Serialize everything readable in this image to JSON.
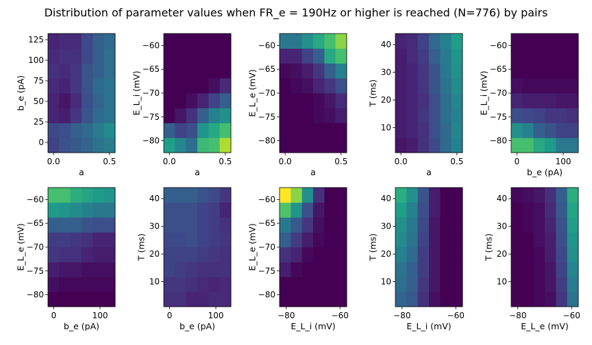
{
  "figure_title": "Distribution of parameter values when FR_e = 190Hz or higher is reached (N=776) by pairs",
  "chart_data": [
    {
      "type": "heatmap",
      "xlabel": "a",
      "ylabel": "b_e (pA)",
      "xlim": [
        -0.05,
        0.55
      ],
      "ylim": [
        -12.5,
        132.5
      ],
      "xticks": [
        0.0,
        0.5
      ],
      "xtick_labels": [
        "0.0",
        "0.5"
      ],
      "yticks": [
        0,
        25,
        50,
        75,
        100,
        125
      ],
      "ytick_labels": [
        "0",
        "25",
        "50",
        "75",
        "100",
        "125"
      ],
      "values": [
        [
          20,
          25,
          28,
          32,
          38,
          42
        ],
        [
          22,
          24,
          30,
          34,
          42,
          48
        ],
        [
          10,
          8,
          16,
          26,
          34,
          38
        ],
        [
          10,
          6,
          12,
          24,
          32,
          38
        ],
        [
          12,
          10,
          16,
          26,
          34,
          38
        ],
        [
          14,
          12,
          16,
          26,
          30,
          36
        ],
        [
          12,
          14,
          14,
          22,
          30,
          36
        ],
        [
          10,
          12,
          12,
          22,
          30,
          34
        ]
      ]
    },
    {
      "type": "heatmap",
      "xlabel": "a",
      "ylabel": "E_L_i (mV)",
      "xlim": [
        -0.05,
        0.55
      ],
      "ylim": [
        -82.5,
        -57.5
      ],
      "xticks": [
        0.0,
        0.5
      ],
      "xtick_labels": [
        "0.0",
        "0.5"
      ],
      "yticks": [
        -80,
        -75,
        -70,
        -65,
        -60
      ],
      "ytick_labels": [
        "−80",
        "−75",
        "−70",
        "−65",
        "−60"
      ],
      "values": [
        [
          56,
          46,
          36,
          68,
          70,
          88
        ],
        [
          30,
          20,
          24,
          52,
          60,
          70
        ],
        [
          0,
          6,
          14,
          30,
          44,
          50
        ],
        [
          0,
          0,
          4,
          10,
          20,
          30
        ],
        [
          0,
          0,
          0,
          0,
          4,
          12
        ],
        [
          0,
          0,
          0,
          0,
          0,
          0
        ],
        [
          0,
          0,
          0,
          0,
          0,
          0
        ],
        [
          0,
          0,
          0,
          0,
          0,
          0
        ]
      ]
    },
    {
      "type": "heatmap",
      "xlabel": "a",
      "ylabel": "E_L_e (mV)",
      "xlim": [
        -0.05,
        0.55
      ],
      "ylim": [
        -82.5,
        -57.5
      ],
      "xticks": [
        0.0,
        0.5
      ],
      "xtick_labels": [
        "0.0",
        "0.5"
      ],
      "yticks": [
        -80,
        -75,
        -70,
        -65,
        -60
      ],
      "ytick_labels": [
        "−80",
        "−75",
        "−70",
        "−65",
        "−60"
      ],
      "values": [
        [
          0,
          0,
          0,
          0,
          0,
          0
        ],
        [
          0,
          0,
          0,
          0,
          0,
          0
        ],
        [
          0,
          0,
          0,
          2,
          4,
          8
        ],
        [
          0,
          0,
          0,
          2,
          6,
          12
        ],
        [
          0,
          2,
          4,
          10,
          16,
          24
        ],
        [
          2,
          4,
          8,
          16,
          30,
          44
        ],
        [
          10,
          10,
          20,
          30,
          60,
          70
        ],
        [
          40,
          40,
          50,
          60,
          70,
          82
        ]
      ]
    },
    {
      "type": "heatmap",
      "xlabel": "a",
      "ylabel": "T (ms)",
      "xlim": [
        -0.05,
        0.55
      ],
      "ylim": [
        1,
        44
      ],
      "xticks": [
        0.0,
        0.5
      ],
      "xtick_labels": [
        "0.0",
        "0.5"
      ],
      "yticks": [
        10,
        20,
        30,
        40
      ],
      "ytick_labels": [
        "10",
        "20",
        "30",
        "40"
      ],
      "values": [
        [
          6,
          8,
          14,
          22,
          34,
          44
        ],
        [
          8,
          10,
          14,
          24,
          34,
          46
        ],
        [
          8,
          10,
          16,
          24,
          36,
          44
        ],
        [
          8,
          10,
          14,
          24,
          36,
          46
        ],
        [
          8,
          10,
          16,
          26,
          38,
          48
        ],
        [
          8,
          10,
          16,
          26,
          40,
          50
        ],
        [
          8,
          12,
          18,
          30,
          42,
          52
        ],
        [
          10,
          12,
          20,
          34,
          44,
          56
        ]
      ]
    },
    {
      "type": "heatmap",
      "xlabel": "b_e (pA)",
      "ylabel": "E_L_i (mV)",
      "xlim": [
        -12.5,
        132.5
      ],
      "ylim": [
        -82.5,
        -57.5
      ],
      "xticks": [
        0,
        100
      ],
      "xtick_labels": [
        "0",
        "100"
      ],
      "yticks": [
        -80,
        -75,
        -70,
        -65,
        -60
      ],
      "ytick_labels": [
        "−80",
        "−75",
        "−70",
        "−65",
        "−60"
      ],
      "values": [
        [
          70,
          70,
          60,
          54,
          40,
          40
        ],
        [
          50,
          44,
          30,
          26,
          20,
          20
        ],
        [
          24,
          22,
          20,
          16,
          16,
          14
        ],
        [
          10,
          8,
          8,
          8,
          6,
          6
        ],
        [
          4,
          2,
          2,
          2,
          2,
          2
        ],
        [
          0,
          0,
          0,
          0,
          0,
          0
        ],
        [
          0,
          0,
          0,
          0,
          0,
          0
        ],
        [
          0,
          0,
          0,
          0,
          0,
          0
        ]
      ]
    },
    {
      "type": "heatmap",
      "xlabel": "b_e (pA)",
      "ylabel": "E_L_e (mV)",
      "xlim": [
        -12.5,
        132.5
      ],
      "ylim": [
        -82.5,
        -57.5
      ],
      "xticks": [
        0,
        100
      ],
      "xtick_labels": [
        "0",
        "100"
      ],
      "yticks": [
        -80,
        -75,
        -70,
        -65,
        -60
      ],
      "ytick_labels": [
        "−80",
        "−75",
        "−70",
        "−65",
        "−60"
      ],
      "values": [
        [
          0,
          0,
          0,
          0,
          0,
          0
        ],
        [
          4,
          2,
          2,
          2,
          2,
          2
        ],
        [
          8,
          6,
          6,
          4,
          4,
          4
        ],
        [
          16,
          14,
          14,
          10,
          8,
          8
        ],
        [
          18,
          18,
          16,
          14,
          10,
          10
        ],
        [
          30,
          30,
          30,
          26,
          24,
          24
        ],
        [
          54,
          52,
          48,
          44,
          40,
          40
        ],
        [
          70,
          70,
          62,
          58,
          54,
          52
        ]
      ]
    },
    {
      "type": "heatmap",
      "xlabel": "b_e (pA)",
      "ylabel": "T (ms)",
      "xlim": [
        -12.5,
        132.5
      ],
      "ylim": [
        1,
        44
      ],
      "xticks": [
        0,
        100
      ],
      "xtick_labels": [
        "0",
        "100"
      ],
      "yticks": [
        10,
        20,
        30,
        40
      ],
      "ytick_labels": [
        "10",
        "20",
        "30",
        "40"
      ],
      "values": [
        [
          14,
          14,
          10,
          10,
          12,
          12
        ],
        [
          16,
          16,
          14,
          12,
          10,
          12
        ],
        [
          20,
          18,
          16,
          14,
          14,
          14
        ],
        [
          20,
          20,
          20,
          18,
          16,
          14
        ],
        [
          22,
          22,
          24,
          20,
          18,
          16
        ],
        [
          24,
          24,
          24,
          20,
          18,
          14
        ],
        [
          24,
          24,
          24,
          20,
          18,
          10
        ],
        [
          30,
          30,
          30,
          26,
          22,
          16
        ]
      ]
    },
    {
      "type": "heatmap",
      "xlabel": "E_L_i (mV)",
      "ylabel": "E_L_e (mV)",
      "xlim": [
        -82.5,
        -57.5
      ],
      "ylim": [
        -82.5,
        -57.5
      ],
      "xticks": [
        -80,
        -60
      ],
      "xtick_labels": [
        "−80",
        "−60"
      ],
      "yticks": [
        -80,
        -75,
        -70,
        -65,
        -60
      ],
      "ytick_labels": [
        "−80",
        "−75",
        "−70",
        "−65",
        "−60"
      ],
      "values": [
        [
          0,
          0,
          0,
          0,
          0,
          0
        ],
        [
          0,
          0,
          0,
          0,
          0,
          0
        ],
        [
          8,
          2,
          0,
          0,
          0,
          0
        ],
        [
          14,
          10,
          2,
          0,
          0,
          0
        ],
        [
          30,
          18,
          8,
          2,
          0,
          0
        ],
        [
          40,
          28,
          16,
          4,
          0,
          0
        ],
        [
          72,
          52,
          24,
          6,
          0,
          0
        ],
        [
          100,
          82,
          50,
          14,
          0,
          0
        ]
      ]
    },
    {
      "type": "heatmap",
      "xlabel": "E_L_i (mV)",
      "ylabel": "T (ms)",
      "xlim": [
        -82.5,
        -57.5
      ],
      "ylim": [
        1,
        44
      ],
      "xticks": [
        -80,
        -60
      ],
      "xtick_labels": [
        "−80",
        "−60"
      ],
      "yticks": [
        10,
        20,
        30,
        40
      ],
      "ytick_labels": [
        "10",
        "20",
        "30",
        "40"
      ],
      "values": [
        [
          32,
          28,
          14,
          4,
          0,
          0
        ],
        [
          36,
          30,
          16,
          6,
          0,
          0
        ],
        [
          38,
          30,
          18,
          6,
          0,
          0
        ],
        [
          44,
          34,
          18,
          6,
          0,
          0
        ],
        [
          48,
          38,
          20,
          6,
          0,
          0
        ],
        [
          50,
          40,
          22,
          6,
          0,
          0
        ],
        [
          56,
          44,
          24,
          8,
          0,
          0
        ],
        [
          62,
          50,
          26,
          8,
          0,
          0
        ]
      ]
    },
    {
      "type": "heatmap",
      "xlabel": "E_L_e (mV)",
      "ylabel": "T (ms)",
      "xlim": [
        -82.5,
        -57.5
      ],
      "ylim": [
        1,
        44
      ],
      "xticks": [
        -80,
        -60
      ],
      "xtick_labels": [
        "−80",
        "−60"
      ],
      "yticks": [
        10,
        20,
        30,
        40
      ],
      "ytick_labels": [
        "10",
        "20",
        "30",
        "40"
      ],
      "values": [
        [
          0,
          0,
          2,
          4,
          16,
          38
        ],
        [
          0,
          0,
          2,
          6,
          18,
          42
        ],
        [
          0,
          0,
          2,
          6,
          20,
          46
        ],
        [
          0,
          0,
          2,
          8,
          22,
          50
        ],
        [
          0,
          0,
          4,
          8,
          24,
          52
        ],
        [
          0,
          2,
          4,
          10,
          26,
          56
        ],
        [
          0,
          2,
          4,
          12,
          28,
          58
        ],
        [
          2,
          4,
          6,
          14,
          30,
          62
        ]
      ]
    }
  ]
}
